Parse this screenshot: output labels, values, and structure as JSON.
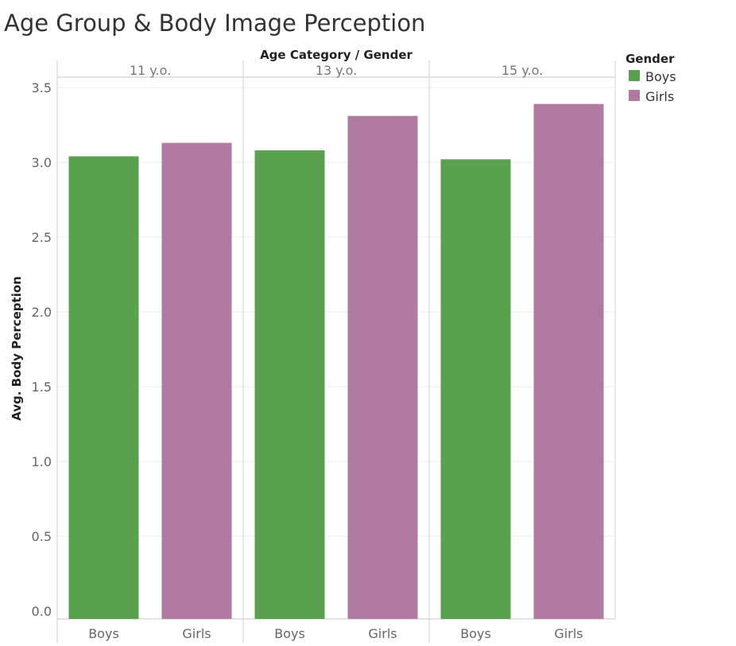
{
  "chart_data": {
    "type": "bar",
    "title": "Age Group & Body Image Perception",
    "column_header_title": "Age Category / Gender",
    "ylabel": "Avg. Body Perception",
    "ylim": [
      0,
      3.5
    ],
    "yticks": [
      "0.0",
      "0.5",
      "1.0",
      "1.5",
      "2.0",
      "2.5",
      "3.0",
      "3.5"
    ],
    "groups": [
      {
        "label": "11 y.o.",
        "bars": [
          {
            "category": "Boys",
            "value": 3.04
          },
          {
            "category": "Girls",
            "value": 3.13
          }
        ]
      },
      {
        "label": "13 y.o.",
        "bars": [
          {
            "category": "Boys",
            "value": 3.08
          },
          {
            "category": "Girls",
            "value": 3.31
          }
        ]
      },
      {
        "label": "15 y.o.",
        "bars": [
          {
            "category": "Boys",
            "value": 3.02
          },
          {
            "category": "Girls",
            "value": 3.39
          }
        ]
      }
    ],
    "legend": {
      "title": "Gender",
      "placement": "top-right",
      "items": [
        {
          "name": "Boys",
          "color": "#59a14f"
        },
        {
          "name": "Girls",
          "color": "#b07aa1"
        }
      ]
    },
    "colors": {
      "Boys": "#59a14f",
      "Girls": "#b07aa1"
    },
    "grid": true
  }
}
